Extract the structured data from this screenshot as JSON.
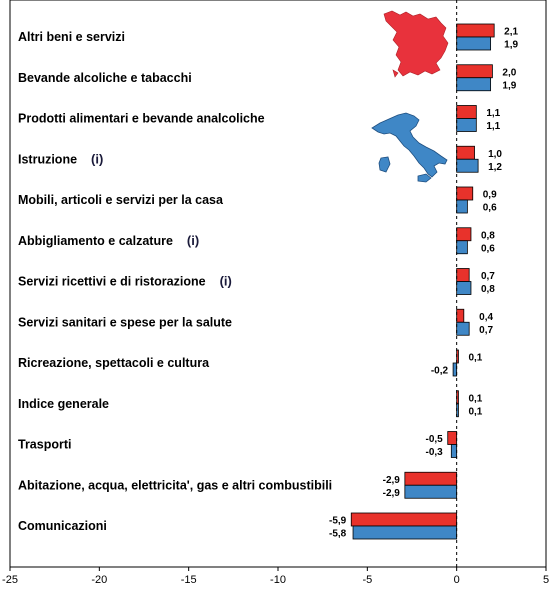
{
  "chart_data": {
    "type": "bar",
    "orientation": "horizontal",
    "categories": [
      "Altri beni e servizi",
      "Bevande alcoliche e tabacchi",
      "Prodotti alimentari e bevande analcoliche",
      "Istruzione",
      "Mobili, articoli e servizi per la casa",
      "Abbigliamento e calzature",
      "Servizi ricettivi e di ristorazione",
      "Servizi sanitari e spese per la salute",
      "Ricreazione, spettacoli e cultura",
      "Indice generale",
      "Trasporti",
      "Abitazione, acqua, elettricita', gas e altri combustibili",
      "Comunicazioni"
    ],
    "info_marks": [
      false,
      false,
      false,
      true,
      false,
      true,
      true,
      false,
      false,
      false,
      false,
      false,
      false
    ],
    "info_glyph": "(i)",
    "series": [
      {
        "color": "#e8322b",
        "values": [
          2.1,
          2.0,
          1.1,
          1.0,
          0.9,
          0.8,
          0.7,
          0.4,
          0.1,
          0.1,
          -0.5,
          -2.9,
          -5.9
        ]
      },
      {
        "color": "#3f87c6",
        "values": [
          1.9,
          1.9,
          1.1,
          1.2,
          0.6,
          0.6,
          0.8,
          0.7,
          -0.2,
          0.1,
          -0.3,
          -2.9,
          -5.8
        ]
      }
    ],
    "value_labels": [
      [
        "2,1",
        "2,0",
        "1,1",
        "1,0",
        "0,9",
        "0,8",
        "0,7",
        "0,4",
        "0,1",
        "0,1",
        "-0,5",
        "-2,9",
        "-5,9"
      ],
      [
        "1,9",
        "1,9",
        "1,1",
        "1,2",
        "0,6",
        "0,6",
        "0,8",
        "0,7",
        "-0,2",
        "0,1",
        "-0,3",
        "-2,9",
        "-5,8"
      ]
    ],
    "xlim": [
      -25,
      5
    ],
    "xticks": [
      -25,
      -20,
      -15,
      -10,
      -5,
      0,
      5
    ],
    "xtick_labels": [
      "-25",
      "-20",
      "-15",
      "-10",
      "-5",
      "0",
      "5"
    ],
    "zero_line": "dashed",
    "grid": false,
    "legend": "none",
    "decorations": [
      "tuscany-map",
      "italy-map"
    ],
    "map_colors": {
      "tuscany": "#e8323c",
      "italy": "#3f87c6"
    }
  }
}
